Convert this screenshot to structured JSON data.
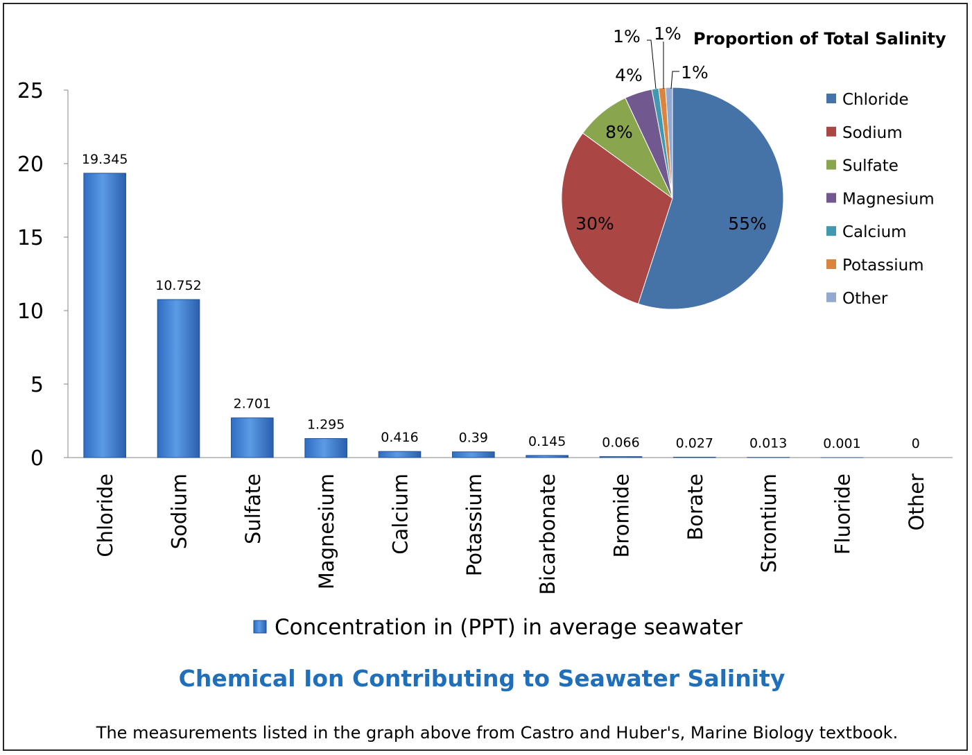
{
  "chart_data": [
    {
      "type": "bar",
      "title": "Chemical Ion Contributing to Seawater Salinity",
      "categories": [
        "Chloride",
        "Sodium",
        "Sulfate",
        "Magnesium",
        "Calcium",
        "Potassium",
        "Bicarbonate",
        "Bromide",
        "Borate",
        "Strontium",
        "Fluoride",
        "Other"
      ],
      "series": [
        {
          "name": "Concentration in (PPT) in average seawater",
          "values": [
            19.345,
            10.752,
            2.701,
            1.295,
            0.416,
            0.39,
            0.145,
            0.066,
            0.027,
            0.013,
            0.001,
            0
          ],
          "labels": [
            "19.345",
            "10.752",
            "2.701",
            "1.295",
            "0.416",
            "0.39",
            "0.145",
            "0.066",
            "0.027",
            "0.013",
            "0.001",
            "0"
          ],
          "color": "#4a86d6"
        }
      ],
      "ylim": [
        0,
        25
      ],
      "yticks": [
        "0",
        "5",
        "10",
        "15",
        "20",
        "25"
      ],
      "xlabel": "",
      "ylabel": "",
      "legend_position": "bottom",
      "grid": false
    },
    {
      "type": "pie",
      "title": "Proportion of Total Salinity",
      "labels": [
        "Chloride",
        "Sodium",
        "Sulfate",
        "Magnesium",
        "Calcium",
        "Potassium",
        "Other"
      ],
      "values": [
        55,
        30,
        8,
        4,
        1,
        1,
        1
      ],
      "value_labels": [
        "55%",
        "30%",
        "8%",
        "4%",
        "1%",
        "1%",
        "1%"
      ],
      "colors": [
        "#4572a7",
        "#aa4643",
        "#89a54e",
        "#71588f",
        "#4198af",
        "#db843d",
        "#93a9cf"
      ],
      "legend_position": "right"
    }
  ],
  "caption": "The measurements listed in the  graph above from Castro and Huber's, Marine Biology textbook."
}
